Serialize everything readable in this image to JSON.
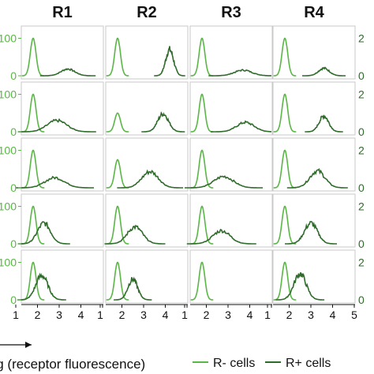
{
  "chart_data": {
    "type": "line",
    "columns": [
      "R1",
      "R2",
      "R3",
      "R4"
    ],
    "xlabel": "log (receptor fluorescence)",
    "x_ticks": [
      "1",
      "2",
      "3",
      "4",
      "5"
    ],
    "xlim": [
      1,
      5
    ],
    "y_left_ticks": [
      "0",
      "100"
    ],
    "y_right_ticks": [
      "0",
      "2"
    ],
    "ylim": [
      0,
      120
    ],
    "colors": {
      "r_minus": "#5ab646",
      "r_plus": "#2f6b2a"
    },
    "legend": {
      "position": "bottom-right",
      "items": [
        {
          "label": "R- cells",
          "color": "#5ab646"
        },
        {
          "label": "R+ cells",
          "color": "#2f6b2a"
        }
      ]
    },
    "series": [
      {
        "name": "R- cells",
        "kind": "r_minus"
      },
      {
        "name": "R+ cells",
        "kind": "r_plus"
      }
    ],
    "panels": [
      [
        {
          "neg": {
            "mu": 1.8,
            "sd": 0.13,
            "peak": 100
          },
          "pos": {
            "mu": 3.4,
            "sd": 0.32,
            "peak": 18
          }
        },
        {
          "neg": {
            "mu": 1.8,
            "sd": 0.13,
            "peak": 100
          },
          "pos": {
            "mu": 4.2,
            "sd": 0.18,
            "peak": 70
          }
        },
        {
          "neg": {
            "mu": 1.8,
            "sd": 0.13,
            "peak": 100
          },
          "pos": {
            "mu": 3.7,
            "sd": 0.4,
            "peak": 15
          }
        },
        {
          "neg": {
            "mu": 1.8,
            "sd": 0.13,
            "peak": 100
          },
          "pos": {
            "mu": 3.6,
            "sd": 0.25,
            "peak": 20
          }
        }
      ],
      [
        {
          "neg": {
            "mu": 1.8,
            "sd": 0.13,
            "peak": 100
          },
          "pos": {
            "mu": 2.9,
            "sd": 0.45,
            "peak": 30
          }
        },
        {
          "neg": {
            "mu": 1.8,
            "sd": 0.13,
            "peak": 50
          },
          "pos": {
            "mu": 3.9,
            "sd": 0.25,
            "peak": 48
          }
        },
        {
          "neg": {
            "mu": 1.8,
            "sd": 0.13,
            "peak": 100
          },
          "pos": {
            "mu": 3.8,
            "sd": 0.4,
            "peak": 25
          }
        },
        {
          "neg": {
            "mu": 1.8,
            "sd": 0.13,
            "peak": 100
          },
          "pos": {
            "mu": 3.6,
            "sd": 0.22,
            "peak": 42
          }
        }
      ],
      [
        {
          "neg": {
            "mu": 1.8,
            "sd": 0.13,
            "peak": 100
          },
          "pos": {
            "mu": 2.8,
            "sd": 0.45,
            "peak": 27
          }
        },
        {
          "neg": {
            "mu": 1.8,
            "sd": 0.13,
            "peak": 75
          },
          "pos": {
            "mu": 3.3,
            "sd": 0.38,
            "peak": 43
          }
        },
        {
          "neg": {
            "mu": 1.8,
            "sd": 0.13,
            "peak": 100
          },
          "pos": {
            "mu": 2.8,
            "sd": 0.45,
            "peak": 30
          }
        },
        {
          "neg": {
            "mu": 1.8,
            "sd": 0.13,
            "peak": 100
          },
          "pos": {
            "mu": 3.3,
            "sd": 0.35,
            "peak": 45
          }
        }
      ],
      [
        {
          "neg": {
            "mu": 1.8,
            "sd": 0.13,
            "peak": 100
          },
          "pos": {
            "mu": 2.3,
            "sd": 0.3,
            "peak": 55
          }
        },
        {
          "neg": {
            "mu": 1.8,
            "sd": 0.13,
            "peak": 100
          },
          "pos": {
            "mu": 2.6,
            "sd": 0.35,
            "peak": 45
          }
        },
        {
          "neg": {
            "mu": 1.8,
            "sd": 0.13,
            "peak": 100
          },
          "pos": {
            "mu": 2.7,
            "sd": 0.4,
            "peak": 35
          }
        },
        {
          "neg": {
            "mu": 1.8,
            "sd": 0.13,
            "peak": 100
          },
          "pos": {
            "mu": 3.0,
            "sd": 0.3,
            "peak": 55
          }
        }
      ],
      [
        {
          "neg": {
            "mu": 1.8,
            "sd": 0.13,
            "peak": 100
          },
          "pos": {
            "mu": 2.2,
            "sd": 0.28,
            "peak": 65
          }
        },
        {
          "neg": {
            "mu": 1.8,
            "sd": 0.13,
            "peak": 100
          },
          "pos": {
            "mu": 2.5,
            "sd": 0.22,
            "peak": 55
          }
        },
        {
          "neg": {
            "mu": 1.8,
            "sd": 0.13,
            "peak": 100
          },
          "pos": null
        },
        {
          "neg": {
            "mu": 1.8,
            "sd": 0.13,
            "peak": 100
          },
          "pos": {
            "mu": 2.5,
            "sd": 0.28,
            "peak": 70
          }
        }
      ]
    ]
  }
}
